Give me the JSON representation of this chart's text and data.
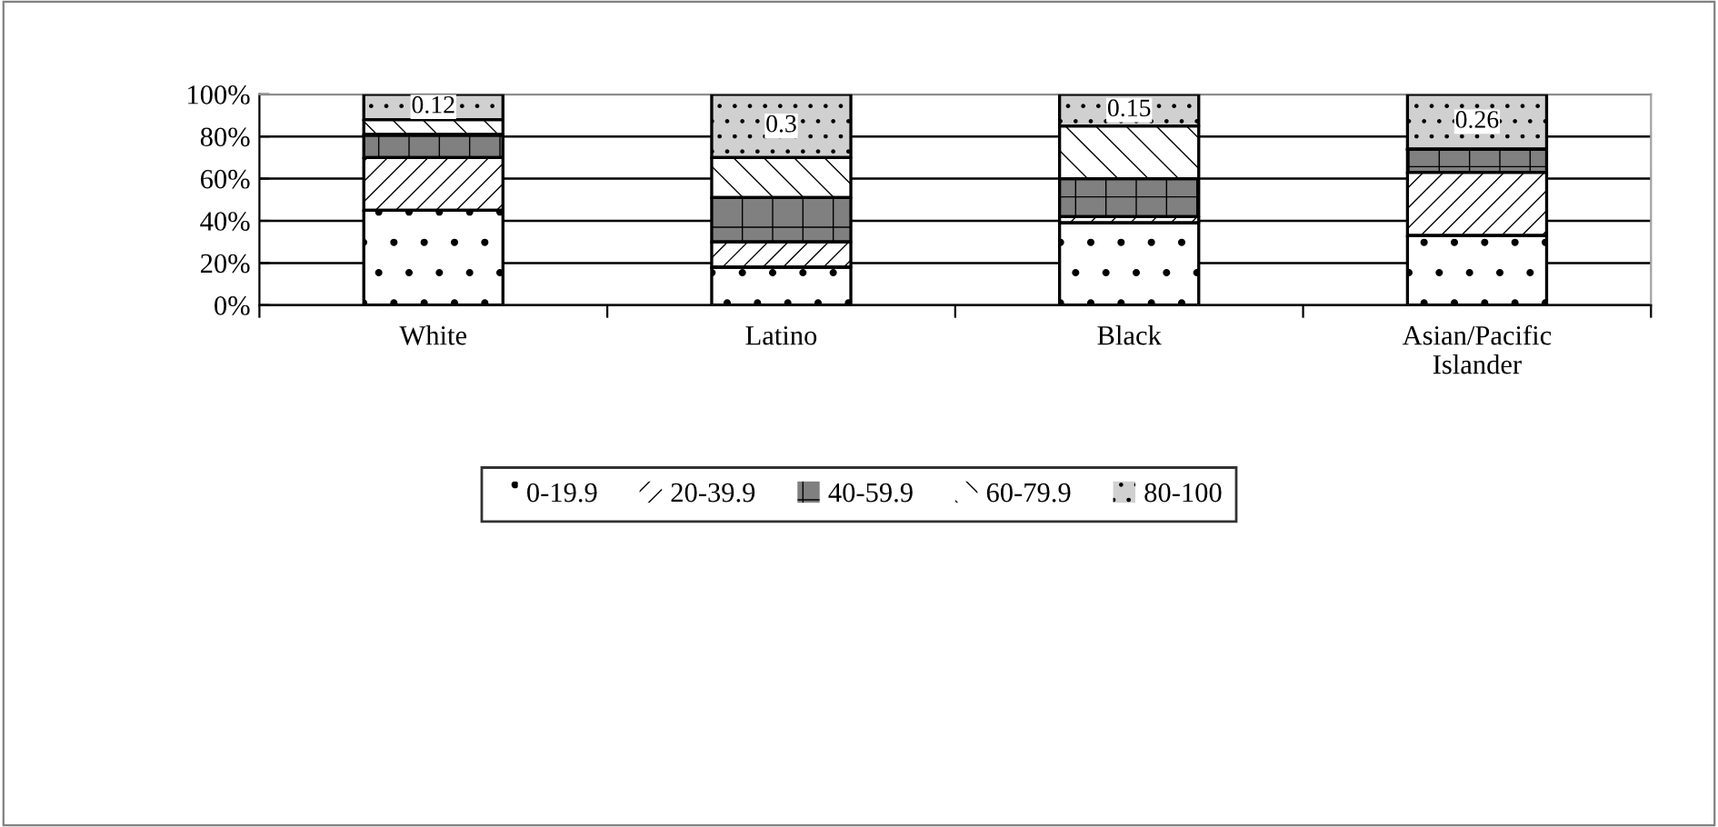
{
  "chart_data": {
    "type": "bar",
    "stacked": true,
    "categories": [
      "White",
      "Latino",
      "Black",
      "Asian/Pacific\nIslander"
    ],
    "series": [
      {
        "name": "0-19.9",
        "color": "#ffffff",
        "values": [
          0.45,
          0.18,
          0.39,
          0.33
        ]
      },
      {
        "name": "20-39.9",
        "color": "#ffffff",
        "values": [
          0.25,
          0.12,
          0.03,
          0.3
        ]
      },
      {
        "name": "40-59.9",
        "color": "#808080",
        "values": [
          0.11,
          0.21,
          0.18,
          0.11
        ]
      },
      {
        "name": "60-79.9",
        "color": "#ffffff",
        "values": [
          0.07,
          0.19,
          0.25,
          0
        ]
      },
      {
        "name": "80-100",
        "color": "#d0d0d0",
        "values": [
          0.12,
          0.3,
          0.15,
          0.26
        ],
        "value_labels": [
          "0.12",
          "0.3",
          "0.15",
          "0.26"
        ]
      }
    ],
    "ylim": [
      0,
      1
    ],
    "yticks": [
      {
        "value": 0,
        "label": "0%"
      },
      {
        "value": 0.2,
        "label": "20%"
      },
      {
        "value": 0.4,
        "label": "40%"
      },
      {
        "value": 0.6,
        "label": "60%"
      },
      {
        "value": 0.8,
        "label": "80%"
      },
      {
        "value": 1,
        "label": "100%"
      }
    ],
    "grid": "y",
    "legend": "bottom"
  }
}
